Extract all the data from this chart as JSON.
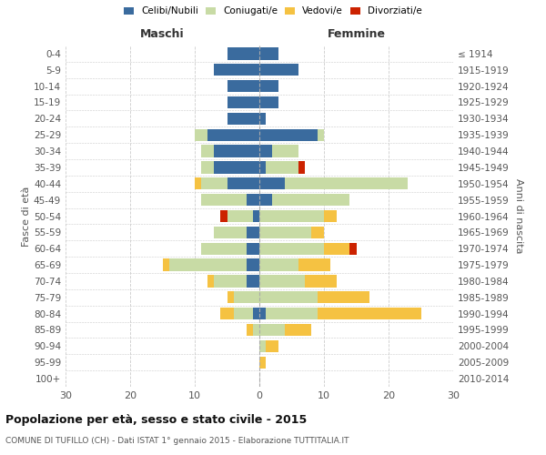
{
  "age_groups": [
    "0-4",
    "5-9",
    "10-14",
    "15-19",
    "20-24",
    "25-29",
    "30-34",
    "35-39",
    "40-44",
    "45-49",
    "50-54",
    "55-59",
    "60-64",
    "65-69",
    "70-74",
    "75-79",
    "80-84",
    "85-89",
    "90-94",
    "95-99",
    "100+"
  ],
  "birth_years": [
    "2010-2014",
    "2005-2009",
    "2000-2004",
    "1995-1999",
    "1990-1994",
    "1985-1989",
    "1980-1984",
    "1975-1979",
    "1970-1974",
    "1965-1969",
    "1960-1964",
    "1955-1959",
    "1950-1954",
    "1945-1949",
    "1940-1944",
    "1935-1939",
    "1930-1934",
    "1925-1929",
    "1920-1924",
    "1915-1919",
    "≤ 1914"
  ],
  "colors": {
    "celibe": "#3a6b9e",
    "coniugato": "#c8dba5",
    "vedovo": "#f5c242",
    "divorziato": "#cc2200"
  },
  "male": {
    "celibe": [
      5,
      7,
      5,
      5,
      5,
      8,
      7,
      7,
      5,
      2,
      1,
      2,
      2,
      2,
      2,
      0,
      1,
      0,
      0,
      0,
      0
    ],
    "coniugato": [
      0,
      0,
      0,
      0,
      0,
      2,
      2,
      2,
      4,
      7,
      4,
      5,
      7,
      12,
      5,
      4,
      3,
      1,
      0,
      0,
      0
    ],
    "vedovo": [
      0,
      0,
      0,
      0,
      0,
      0,
      0,
      0,
      1,
      0,
      0,
      0,
      0,
      1,
      1,
      1,
      2,
      1,
      0,
      0,
      0
    ],
    "divorziato": [
      0,
      0,
      0,
      0,
      0,
      0,
      0,
      0,
      0,
      0,
      1,
      0,
      0,
      0,
      0,
      0,
      0,
      0,
      0,
      0,
      0
    ]
  },
  "female": {
    "nubile": [
      3,
      6,
      3,
      3,
      1,
      9,
      2,
      1,
      4,
      2,
      0,
      0,
      0,
      0,
      0,
      0,
      1,
      0,
      0,
      0,
      0
    ],
    "coniugata": [
      0,
      0,
      0,
      0,
      0,
      1,
      4,
      5,
      19,
      12,
      10,
      8,
      10,
      6,
      7,
      9,
      8,
      4,
      1,
      0,
      0
    ],
    "vedova": [
      0,
      0,
      0,
      0,
      0,
      0,
      0,
      0,
      0,
      0,
      2,
      2,
      4,
      5,
      5,
      8,
      16,
      4,
      2,
      1,
      0
    ],
    "divorziata": [
      0,
      0,
      0,
      0,
      0,
      0,
      0,
      1,
      0,
      0,
      0,
      0,
      1,
      0,
      0,
      0,
      0,
      0,
      0,
      0,
      0
    ]
  },
  "xlim": 30,
  "title": "Popolazione per età, sesso e stato civile - 2015",
  "subtitle": "COMUNE DI TUFILLO (CH) - Dati ISTAT 1° gennaio 2015 - Elaborazione TUTTITALIA.IT",
  "ylabel_left": "Fasce di età",
  "ylabel_right": "Anni di nascita",
  "header_left": "Maschi",
  "header_right": "Femmine",
  "legend_labels": [
    "Celibi/Nubili",
    "Coniugati/e",
    "Vedovi/e",
    "Divorziati/e"
  ],
  "background_color": "#ffffff",
  "grid_color": "#cccccc",
  "bar_height": 0.75
}
